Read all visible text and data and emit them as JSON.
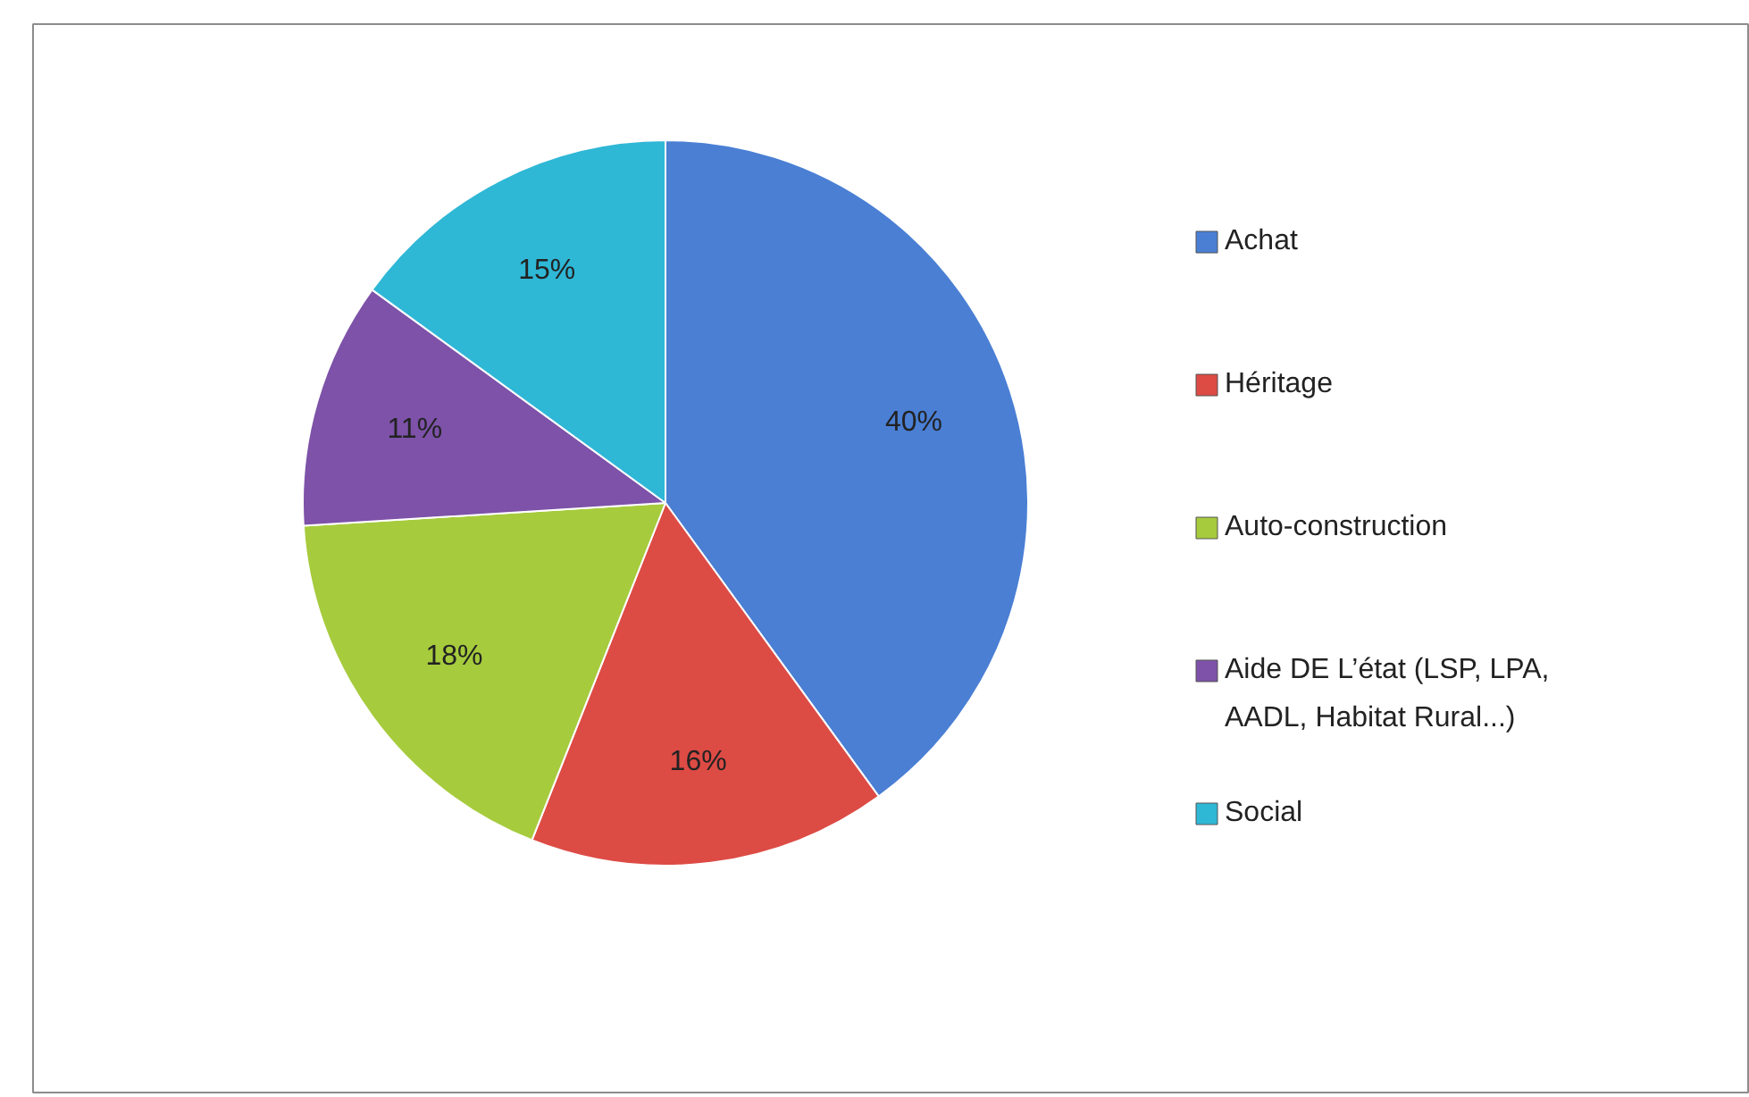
{
  "chart_data": {
    "type": "pie",
    "categories": [
      "Achat",
      "Héritage",
      "Auto-construction",
      "Aide DE  L’état (LSP, LPA, AADL, Habitat Rural...)",
      " Social"
    ],
    "values": [
      40,
      16,
      18,
      11,
      15
    ],
    "colors": [
      "#4a7fd4",
      "#dd4b45",
      "#a6cb3d",
      "#7d52a8",
      "#2fb7d6"
    ],
    "value_labels": [
      "40%",
      "16%",
      "18%",
      "11%",
      "15%"
    ],
    "legend": "right"
  }
}
